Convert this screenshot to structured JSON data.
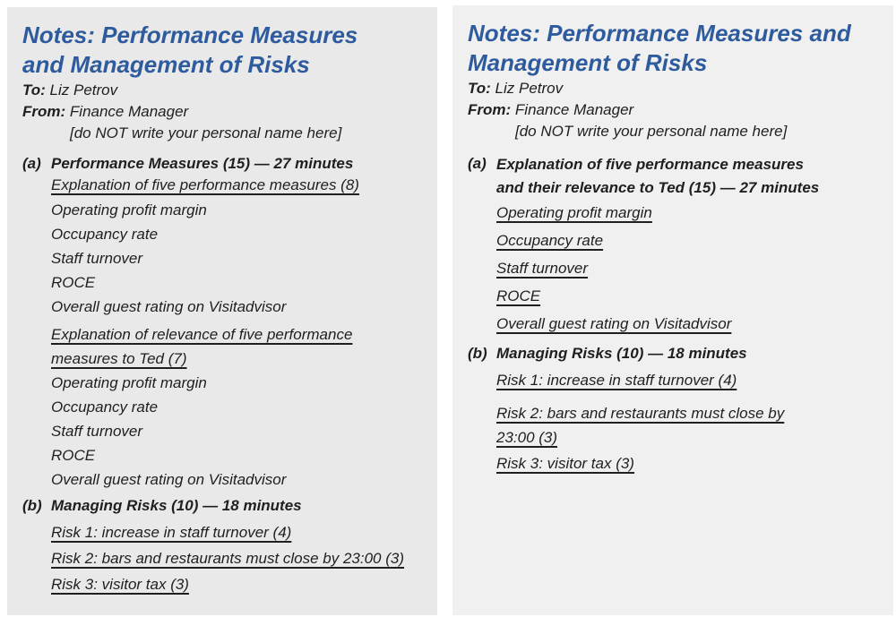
{
  "colors": {
    "accent": "#2e5b9d",
    "text": "#1f1f1f",
    "panel_left_bg": "#e9e9e9",
    "panel_right_bg": "#f0f0f0"
  },
  "panels": [
    {
      "title_lines": [
        "Notes: Performance Measures",
        "and Management of Risks"
      ],
      "to_label": "To:",
      "to_value": "Liz Petrov",
      "from_label": "From:",
      "from_value": "Finance Manager",
      "note": "[do NOT write your personal name here]",
      "a_marker": "(a)",
      "a_heading": "Performance Measures (15) — 27 minutes",
      "a_sub1": "Explanation of five performance measures (8)",
      "a_measures1": [
        "Operating profit margin",
        "Occupancy rate",
        "Staff turnover",
        "ROCE",
        "Overall guest rating on Visitadvisor"
      ],
      "a_sub2_lines": [
        "Explanation of relevance of five performance",
        "measures to Ted (7)"
      ],
      "a_measures2": [
        "Operating profit margin",
        "Occupancy rate",
        "Staff turnover",
        "ROCE",
        "Overall guest rating on Visitadvisor"
      ],
      "b_marker": "(b)",
      "b_heading": "Managing Risks (10) — 18 minutes",
      "b_risks": [
        "Risk 1: increase in staff turnover (4)",
        "Risk 2: bars and restaurants must close by 23:00 (3)",
        "Risk 3: visitor tax (3)"
      ]
    },
    {
      "title_lines": [
        "Notes: Performance Measures and",
        "Management of Risks"
      ],
      "to_label": "To:",
      "to_value": "Liz Petrov",
      "from_label": "From:",
      "from_value": "Finance Manager",
      "note": "[do NOT write your personal name here]",
      "a_marker": "(a)",
      "a_heading_lines": [
        "Explanation of five performance measures",
        "and their relevance to Ted (15) — 27 minutes"
      ],
      "a_measures": [
        "Operating profit margin",
        "Occupancy rate",
        "Staff turnover",
        "ROCE",
        "Overall guest rating on Visitadvisor"
      ],
      "b_marker": "(b)",
      "b_heading": "Managing Risks (10) — 18 minutes",
      "b_risk1": "Risk 1: increase in staff turnover (4)",
      "b_risk2_lines": [
        "Risk 2: bars and restaurants must close by",
        "23:00 (3)"
      ],
      "b_risk3": "Risk 3: visitor tax (3)"
    }
  ]
}
